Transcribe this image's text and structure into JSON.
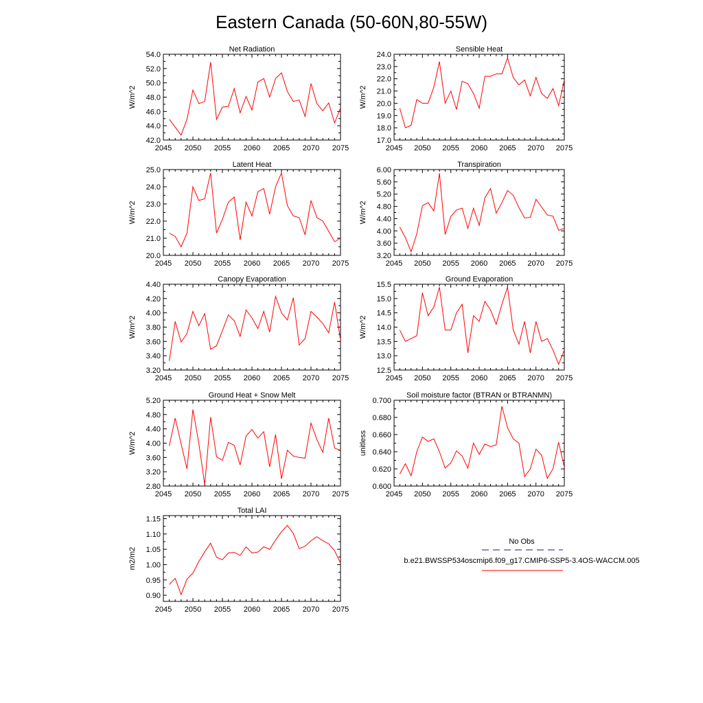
{
  "figure": {
    "title": "Eastern Canada (50-60N,80-55W)"
  },
  "legend": {
    "entries": [
      {
        "label": "No Obs",
        "color": "#1a1a6e",
        "dash": "dashed"
      },
      {
        "label": "b.e21.BWSSP534oscmip6.f09_g17.CMIP6-SSP5-3.4OS-WACCM.005",
        "color": "#ff0000",
        "dash": "solid"
      }
    ]
  },
  "chart_data": [
    {
      "type": "line",
      "title": "Net Radiation",
      "ylabel": "W/m^2",
      "xlabel": "",
      "xlim": [
        2045,
        2075
      ],
      "ylim": [
        42.0,
        54.0
      ],
      "xticks": [
        "2045",
        "2050",
        "2055",
        "2060",
        "2065",
        "2070",
        "2075"
      ],
      "yticks": [
        "42.0",
        "44.0",
        "46.0",
        "48.0",
        "50.0",
        "52.0",
        "54.0"
      ],
      "x": [
        2046,
        2047,
        2048,
        2049,
        2050,
        2051,
        2052,
        2053,
        2054,
        2055,
        2056,
        2057,
        2058,
        2059,
        2060,
        2061,
        2062,
        2063,
        2064,
        2065,
        2066,
        2067,
        2068,
        2069,
        2070,
        2071,
        2072,
        2073,
        2074,
        2075
      ],
      "series": [
        {
          "color": "#ff0000",
          "values": [
            44.9,
            43.8,
            42.7,
            44.9,
            49.0,
            47.1,
            47.4,
            52.9,
            44.9,
            46.6,
            46.7,
            49.2,
            45.8,
            48.1,
            46.2,
            50.1,
            50.6,
            48.0,
            50.6,
            51.4,
            48.8,
            47.4,
            47.6,
            45.3,
            49.9,
            47.1,
            46.1,
            47.2,
            44.4,
            46.5
          ]
        }
      ]
    },
    {
      "type": "line",
      "title": "Sensible Heat",
      "ylabel": "W/m^2",
      "xlabel": "",
      "xlim": [
        2045,
        2075
      ],
      "ylim": [
        17.0,
        24.0
      ],
      "xticks": [
        "2045",
        "2050",
        "2055",
        "2060",
        "2065",
        "2070",
        "2075"
      ],
      "yticks": [
        "17.0",
        "18.0",
        "19.0",
        "20.0",
        "21.0",
        "22.0",
        "23.0",
        "24.0"
      ],
      "x": [
        2046,
        2047,
        2048,
        2049,
        2050,
        2051,
        2052,
        2053,
        2054,
        2055,
        2056,
        2057,
        2058,
        2059,
        2060,
        2061,
        2062,
        2063,
        2064,
        2065,
        2066,
        2067,
        2068,
        2069,
        2070,
        2071,
        2072,
        2073,
        2074,
        2075
      ],
      "series": [
        {
          "color": "#ff0000",
          "values": [
            19.6,
            18.0,
            18.2,
            20.3,
            20.0,
            20.0,
            21.3,
            23.4,
            20.0,
            21.0,
            19.5,
            21.8,
            21.6,
            20.8,
            19.6,
            22.2,
            22.2,
            22.4,
            22.4,
            23.7,
            22.1,
            21.5,
            21.9,
            20.6,
            22.1,
            20.8,
            20.4,
            21.2,
            19.8,
            21.9
          ]
        }
      ]
    },
    {
      "type": "line",
      "title": "Latent Heat",
      "ylabel": "W/m^2",
      "xlabel": "",
      "xlim": [
        2045,
        2075
      ],
      "ylim": [
        20.0,
        25.0
      ],
      "xticks": [
        "2045",
        "2050",
        "2055",
        "2060",
        "2065",
        "2070",
        "2075"
      ],
      "yticks": [
        "20.0",
        "21.0",
        "22.0",
        "23.0",
        "24.0",
        "25.0"
      ],
      "x": [
        2046,
        2047,
        2048,
        2049,
        2050,
        2051,
        2052,
        2053,
        2054,
        2055,
        2056,
        2057,
        2058,
        2059,
        2060,
        2061,
        2062,
        2063,
        2064,
        2065,
        2066,
        2067,
        2068,
        2069,
        2070,
        2071,
        2072,
        2073,
        2074,
        2075
      ],
      "series": [
        {
          "color": "#ff0000",
          "values": [
            21.3,
            21.1,
            20.5,
            21.3,
            24.0,
            23.2,
            23.3,
            24.8,
            21.3,
            22.1,
            23.1,
            23.4,
            20.9,
            23.1,
            22.3,
            23.7,
            23.9,
            22.4,
            24.0,
            24.8,
            22.9,
            22.3,
            22.2,
            21.2,
            23.2,
            22.2,
            22.0,
            21.4,
            20.8,
            21.0
          ]
        }
      ]
    },
    {
      "type": "line",
      "title": "Transpiration",
      "ylabel": "W/m^2",
      "xlabel": "",
      "xlim": [
        2045,
        2075
      ],
      "ylim": [
        3.2,
        6.0
      ],
      "xticks": [
        "2045",
        "2050",
        "2055",
        "2060",
        "2065",
        "2070",
        "2075"
      ],
      "yticks": [
        "3.20",
        "3.60",
        "4.00",
        "4.40",
        "4.80",
        "5.20",
        "5.60",
        "6.00"
      ],
      "x": [
        2046,
        2047,
        2048,
        2049,
        2050,
        2051,
        2052,
        2053,
        2054,
        2055,
        2056,
        2057,
        2058,
        2059,
        2060,
        2061,
        2062,
        2063,
        2064,
        2065,
        2066,
        2067,
        2068,
        2069,
        2070,
        2071,
        2072,
        2073,
        2074,
        2075
      ],
      "series": [
        {
          "color": "#ff0000",
          "values": [
            4.12,
            3.78,
            3.32,
            3.9,
            4.82,
            4.92,
            4.65,
            5.88,
            3.88,
            4.47,
            4.68,
            4.74,
            4.08,
            4.74,
            4.18,
            5.08,
            5.38,
            4.58,
            4.92,
            5.32,
            5.16,
            4.76,
            4.42,
            4.44,
            5.03,
            4.78,
            4.52,
            4.48,
            4.02,
            4.08
          ]
        }
      ]
    },
    {
      "type": "line",
      "title": "Canopy Evaporation",
      "ylabel": "W/m^2",
      "xlabel": "",
      "xlim": [
        2045,
        2075
      ],
      "ylim": [
        3.2,
        4.4
      ],
      "xticks": [
        "2045",
        "2050",
        "2055",
        "2060",
        "2065",
        "2070",
        "2075"
      ],
      "yticks": [
        "3.20",
        "3.40",
        "3.60",
        "3.80",
        "4.00",
        "4.20",
        "4.40"
      ],
      "x": [
        2046,
        2047,
        2048,
        2049,
        2050,
        2051,
        2052,
        2053,
        2054,
        2055,
        2056,
        2057,
        2058,
        2059,
        2060,
        2061,
        2062,
        2063,
        2064,
        2065,
        2066,
        2067,
        2068,
        2069,
        2070,
        2071,
        2072,
        2073,
        2074,
        2075
      ],
      "series": [
        {
          "color": "#ff0000",
          "values": [
            3.33,
            3.88,
            3.59,
            3.71,
            4.02,
            3.82,
            3.99,
            3.49,
            3.54,
            3.75,
            3.97,
            3.89,
            3.67,
            4.04,
            3.93,
            3.78,
            4.02,
            3.73,
            4.23,
            4.0,
            3.9,
            4.21,
            3.55,
            3.64,
            4.02,
            3.94,
            3.85,
            3.72,
            4.15,
            3.62
          ]
        }
      ]
    },
    {
      "type": "line",
      "title": "Ground Evaporation",
      "ylabel": "W/m^2",
      "xlabel": "",
      "xlim": [
        2045,
        2075
      ],
      "ylim": [
        12.5,
        15.5
      ],
      "xticks": [
        "2045",
        "2050",
        "2055",
        "2060",
        "2065",
        "2070",
        "2075"
      ],
      "yticks": [
        "12.5",
        "13.0",
        "13.5",
        "14.0",
        "14.5",
        "15.0",
        "15.5"
      ],
      "x": [
        2046,
        2047,
        2048,
        2049,
        2050,
        2051,
        2052,
        2053,
        2054,
        2055,
        2056,
        2057,
        2058,
        2059,
        2060,
        2061,
        2062,
        2063,
        2064,
        2065,
        2066,
        2067,
        2068,
        2069,
        2070,
        2071,
        2072,
        2073,
        2074,
        2075
      ],
      "series": [
        {
          "color": "#ff0000",
          "values": [
            13.9,
            13.5,
            13.6,
            13.7,
            15.2,
            14.4,
            14.7,
            15.4,
            13.9,
            13.9,
            14.5,
            14.8,
            13.1,
            14.4,
            14.2,
            14.9,
            14.6,
            14.1,
            14.8,
            15.4,
            13.9,
            13.4,
            14.2,
            13.1,
            14.2,
            13.5,
            13.6,
            13.2,
            12.7,
            13.2
          ]
        }
      ]
    },
    {
      "type": "line",
      "title": "Ground Heat + Snow Melt",
      "ylabel": "W/m^2",
      "xlabel": "",
      "xlim": [
        2045,
        2075
      ],
      "ylim": [
        2.8,
        5.2
      ],
      "xticks": [
        "2045",
        "2050",
        "2055",
        "2060",
        "2065",
        "2070",
        "2075"
      ],
      "yticks": [
        "2.80",
        "3.20",
        "3.60",
        "4.00",
        "4.40",
        "4.80",
        "5.20"
      ],
      "x": [
        2046,
        2047,
        2048,
        2049,
        2050,
        2051,
        2052,
        2053,
        2054,
        2055,
        2056,
        2057,
        2058,
        2059,
        2060,
        2061,
        2062,
        2063,
        2064,
        2065,
        2066,
        2067,
        2068,
        2069,
        2070,
        2071,
        2072,
        2073,
        2074,
        2075
      ],
      "series": [
        {
          "color": "#ff0000",
          "values": [
            3.92,
            4.7,
            3.98,
            3.28,
            4.94,
            4.0,
            2.84,
            4.73,
            3.62,
            3.52,
            4.02,
            3.94,
            3.39,
            4.2,
            4.38,
            4.14,
            4.32,
            3.34,
            4.24,
            3.0,
            3.8,
            3.64,
            3.6,
            3.58,
            4.56,
            4.1,
            3.74,
            4.7,
            3.86,
            3.8
          ]
        }
      ]
    },
    {
      "type": "line",
      "title": "Soil moisture factor (BTRAN or BTRANMN)",
      "ylabel": "unitless",
      "xlabel": "",
      "xlim": [
        2045,
        2075
      ],
      "ylim": [
        0.6,
        0.7
      ],
      "xticks": [
        "2045",
        "2050",
        "2055",
        "2060",
        "2065",
        "2070",
        "2075"
      ],
      "yticks": [
        "0.600",
        "0.620",
        "0.640",
        "0.660",
        "0.680",
        "0.700"
      ],
      "x": [
        2046,
        2047,
        2048,
        2049,
        2050,
        2051,
        2052,
        2053,
        2054,
        2055,
        2056,
        2057,
        2058,
        2059,
        2060,
        2061,
        2062,
        2063,
        2064,
        2065,
        2066,
        2067,
        2068,
        2069,
        2070,
        2071,
        2072,
        2073,
        2074,
        2075
      ],
      "series": [
        {
          "color": "#ff0000",
          "values": [
            0.614,
            0.626,
            0.612,
            0.64,
            0.657,
            0.652,
            0.655,
            0.64,
            0.621,
            0.627,
            0.641,
            0.635,
            0.621,
            0.65,
            0.637,
            0.649,
            0.646,
            0.648,
            0.693,
            0.668,
            0.655,
            0.65,
            0.611,
            0.62,
            0.643,
            0.636,
            0.609,
            0.62,
            0.651,
            0.622
          ]
        }
      ]
    },
    {
      "type": "line",
      "title": "Total LAI",
      "ylabel": "m2/m2",
      "xlabel": "",
      "xlim": [
        2045,
        2075
      ],
      "ylim": [
        0.88,
        1.16
      ],
      "xticks": [
        "2045",
        "2050",
        "2055",
        "2060",
        "2065",
        "2070",
        "2075"
      ],
      "yticks": [
        "0.90",
        "0.95",
        "1.00",
        "1.05",
        "1.10",
        "1.15"
      ],
      "x": [
        2046,
        2047,
        2048,
        2049,
        2050,
        2051,
        2052,
        2053,
        2054,
        2055,
        2056,
        2057,
        2058,
        2059,
        2060,
        2061,
        2062,
        2063,
        2064,
        2065,
        2066,
        2067,
        2068,
        2069,
        2070,
        2071,
        2072,
        2073,
        2074,
        2075
      ],
      "series": [
        {
          "color": "#ff0000",
          "values": [
            0.935,
            0.955,
            0.902,
            0.953,
            0.972,
            1.01,
            1.042,
            1.07,
            1.024,
            1.016,
            1.038,
            1.04,
            1.03,
            1.058,
            1.038,
            1.041,
            1.058,
            1.05,
            1.08,
            1.107,
            1.128,
            1.102,
            1.052,
            1.06,
            1.078,
            1.091,
            1.078,
            1.068,
            1.045,
            1.005
          ]
        }
      ]
    }
  ]
}
